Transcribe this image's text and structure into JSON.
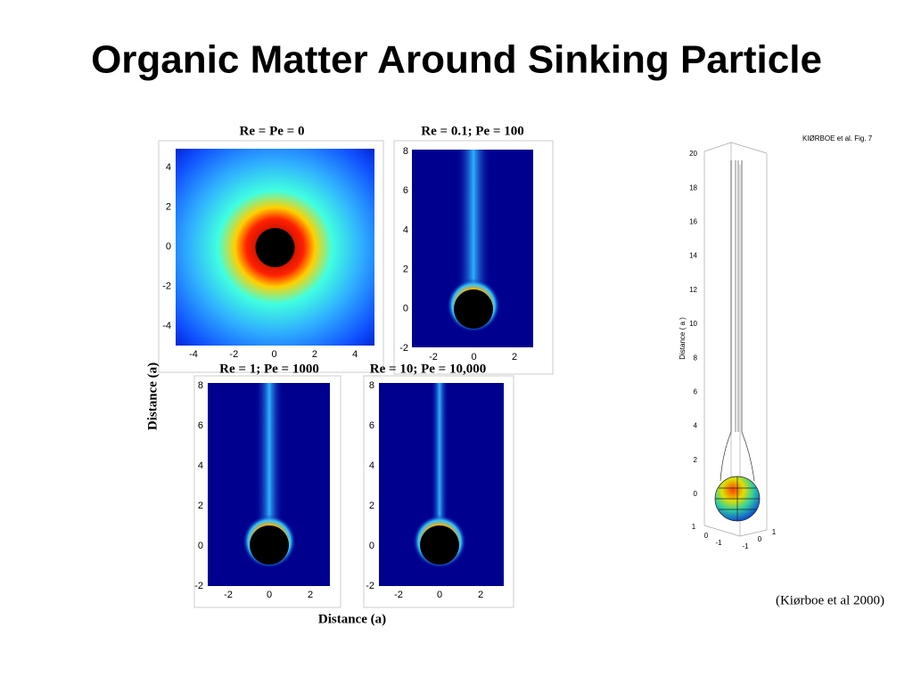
{
  "title": "Organic Matter Around Sinking Particle",
  "panels": [
    {
      "title": "Re = Pe = 0",
      "yticks": [
        "4",
        "2",
        "0",
        "-2",
        "-4"
      ],
      "xticks": [
        "-4",
        "-2",
        "0",
        "2",
        "4"
      ]
    },
    {
      "title": "Re = 0.1; Pe = 100",
      "yticks": [
        "8",
        "6",
        "4",
        "2",
        "0",
        "-2"
      ],
      "xticks": [
        "-2",
        "0",
        "2"
      ]
    },
    {
      "title": "Re = 1; Pe = 1000",
      "yticks": [
        "8",
        "6",
        "4",
        "2",
        "0",
        "-2"
      ],
      "xticks": [
        "-2",
        "0",
        "2"
      ]
    },
    {
      "title": "Re = 10; Pe = 10,000",
      "yticks": [
        "8",
        "6",
        "4",
        "2",
        "0",
        "-2"
      ],
      "xticks": [
        "-2",
        "0",
        "2"
      ]
    }
  ],
  "y_axis_label": "Distance (a)",
  "x_axis_label": "Distance (a)",
  "figure_3d": {
    "caption": "KIØRBOE et al.  Fig. 7",
    "axis_label": "Distance ( a )",
    "zticks": [
      "20",
      "18",
      "16",
      "14",
      "12",
      "10",
      "8",
      "6",
      "4",
      "2",
      "0"
    ],
    "base_ticks": [
      "1",
      "0",
      "-1",
      "1",
      "0",
      "-1"
    ]
  },
  "citation": "(Kiørboe et al 2000)"
}
